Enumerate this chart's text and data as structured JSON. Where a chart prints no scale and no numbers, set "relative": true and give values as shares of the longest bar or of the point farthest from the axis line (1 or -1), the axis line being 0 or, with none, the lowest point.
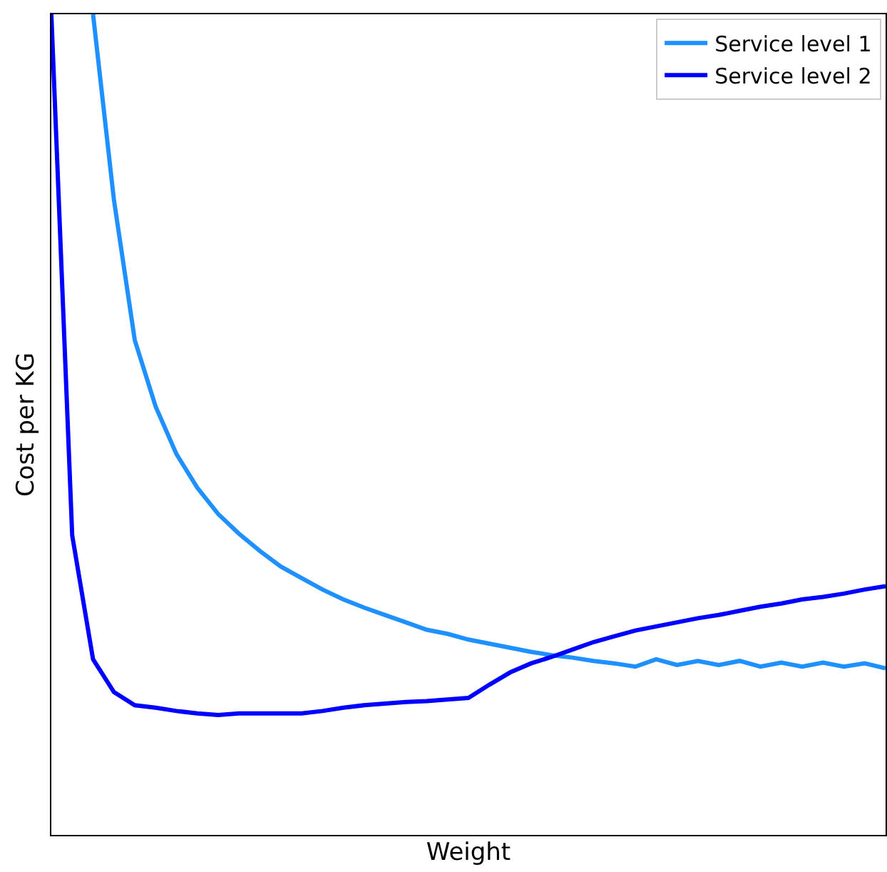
{
  "chart_data": {
    "type": "line",
    "relative": true,
    "xlabel": "Weight",
    "ylabel": "Cost per KG",
    "legend": "top right",
    "marker": "none",
    "line_style": "solid",
    "categories": [
      null,
      null,
      null,
      null,
      null,
      null,
      null,
      null,
      null,
      null,
      null,
      null,
      null,
      null,
      null,
      null,
      null,
      null,
      null,
      null,
      null,
      null,
      null,
      null,
      null,
      null,
      null,
      null,
      null,
      null,
      null,
      null,
      null,
      null,
      null,
      null,
      null,
      null,
      null,
      null,
      null
    ],
    "series": [
      {
        "name": "Service level 1",
        "color": "#1e90ff",
        "values": [
          null,
          null,
          1,
          0.774,
          0.603,
          0.522,
          0.464,
          0.423,
          0.391,
          0.367,
          0.346,
          0.327,
          0.313,
          0.299,
          0.287,
          0.277,
          0.268,
          0.259,
          0.25,
          0.245,
          0.238,
          0.233,
          0.228,
          0.223,
          0.219,
          0.216,
          0.212,
          0.209,
          0.205,
          0.214,
          0.207,
          0.212,
          0.207,
          0.212,
          0.205,
          0.21,
          0.205,
          0.21,
          0.205,
          0.209,
          0.203
        ]
      },
      {
        "name": "Service level 2",
        "color": "#0000ff",
        "values": [
          1,
          0.365,
          0.214,
          0.174,
          0.158,
          0.155,
          0.151,
          0.148,
          0.146,
          0.148,
          0.148,
          0.148,
          0.148,
          0.151,
          0.155,
          0.158,
          0.16,
          0.162,
          0.163,
          0.165,
          0.167,
          0.183,
          0.198,
          0.209,
          0.217,
          0.226,
          0.235,
          0.242,
          0.249,
          0.254,
          0.259,
          0.264,
          0.268,
          0.273,
          0.278,
          0.282,
          0.287,
          0.29,
          0.294,
          0.299,
          0.303
        ]
      }
    ]
  }
}
